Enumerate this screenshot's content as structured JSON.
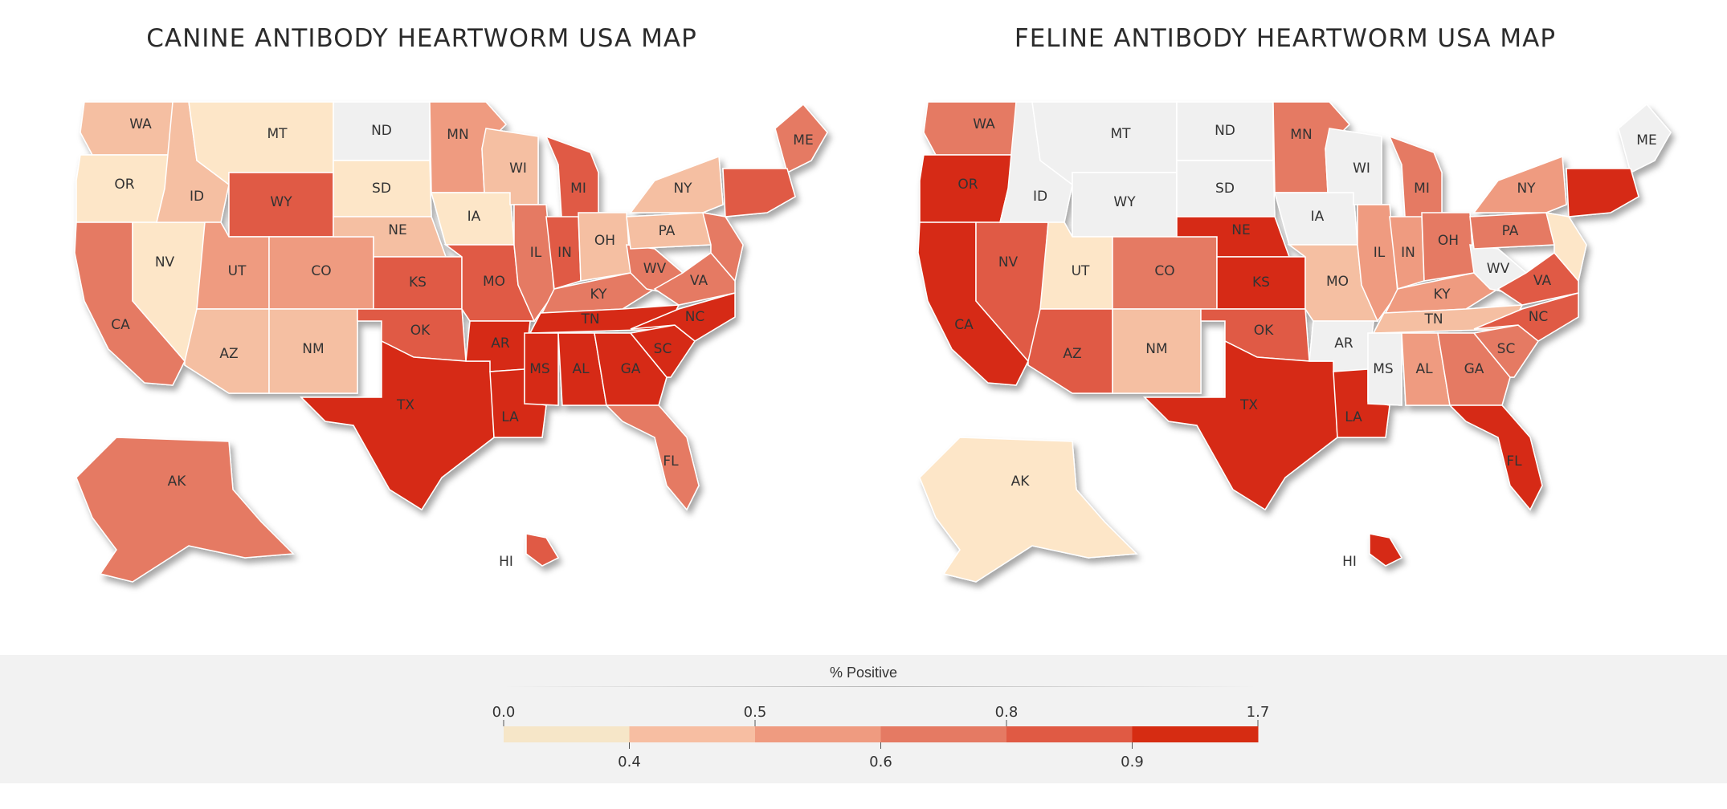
{
  "maps": [
    {
      "id": "canine",
      "title": "CANINE ANTIBODY HEARTWORM USA MAP",
      "states": {
        "WA": "#f5bfa2",
        "OR": "#fde6c8",
        "CA": "#e57a63",
        "NV": "#fde6c8",
        "ID": "#f5bfa2",
        "MT": "#fde6c8",
        "WY": "#e05a44",
        "UT": "#ef9b80",
        "AZ": "#f5bfa2",
        "CO": "#ef9b80",
        "NM": "#f5bfa2",
        "ND": "#f0f0f0",
        "SD": "#fde6c8",
        "NE": "#f5bfa2",
        "KS": "#e05a44",
        "OK": "#e05a44",
        "TX": "#d62c12",
        "MN": "#ef9b80",
        "IA": "#fde6c8",
        "MO": "#e05a44",
        "AR": "#d62c12",
        "LA": "#d62c12",
        "WI": "#f5bfa2",
        "IL": "#e57a63",
        "MI": "#e05a44",
        "IN": "#e05a44",
        "OH": "#f5bfa2",
        "KY": "#e57a63",
        "TN": "#d62c12",
        "MS": "#d62c12",
        "AL": "#d62c12",
        "GA": "#d62c12",
        "FL": "#e57a63",
        "SC": "#d62c12",
        "NC": "#d62c12",
        "WV": "#e57a63",
        "VA": "#e57a63",
        "PA": "#f5bfa2",
        "NY": "#f5bfa2",
        "ME": "#e57a63",
        "NE_REG": "#e05a44",
        "MIDATL": "#e57a63",
        "AK": "#e57a63",
        "HI": "#e05a44"
      }
    },
    {
      "id": "feline",
      "title": "FELINE ANTIBODY HEARTWORM USA MAP",
      "states": {
        "WA": "#e57a63",
        "OR": "#d62c12",
        "CA": "#d62c12",
        "NV": "#e05a44",
        "ID": "#f0f0f0",
        "MT": "#f0f0f0",
        "WY": "#f0f0f0",
        "UT": "#fde6c8",
        "AZ": "#e05a44",
        "CO": "#e57a63",
        "NM": "#f5bfa2",
        "ND": "#f0f0f0",
        "SD": "#f0f0f0",
        "NE": "#d62c12",
        "KS": "#d62c12",
        "OK": "#e05a44",
        "TX": "#d62c12",
        "MN": "#e57a63",
        "IA": "#f0f0f0",
        "MO": "#f5bfa2",
        "AR": "#f0f0f0",
        "LA": "#d62c12",
        "WI": "#f0f0f0",
        "IL": "#ef9b80",
        "MI": "#e57a63",
        "IN": "#ef9b80",
        "OH": "#e57a63",
        "KY": "#ef9b80",
        "TN": "#f5bfa2",
        "MS": "#f0f0f0",
        "AL": "#ef9b80",
        "GA": "#e57a63",
        "FL": "#d62c12",
        "SC": "#e57a63",
        "NC": "#e05a44",
        "WV": "#f0f0f0",
        "VA": "#e05a44",
        "PA": "#e57a63",
        "NY": "#ef9b80",
        "ME": "#f0f0f0",
        "NE_REG": "#d62c12",
        "MIDATL": "#fde6c8",
        "AK": "#fde6c8",
        "HI": "#d62c12"
      }
    }
  ],
  "legend": {
    "title": "% Positive",
    "top_ticks": [
      "0.0",
      "0.5",
      "0.8",
      "1.7"
    ],
    "bottom_ticks": [
      "0.4",
      "0.6",
      "0.9"
    ],
    "colors": [
      "#f6e6c8",
      "#f7bea2",
      "#ef9b80",
      "#e57a63",
      "#e05a44",
      "#d62c12"
    ]
  }
}
